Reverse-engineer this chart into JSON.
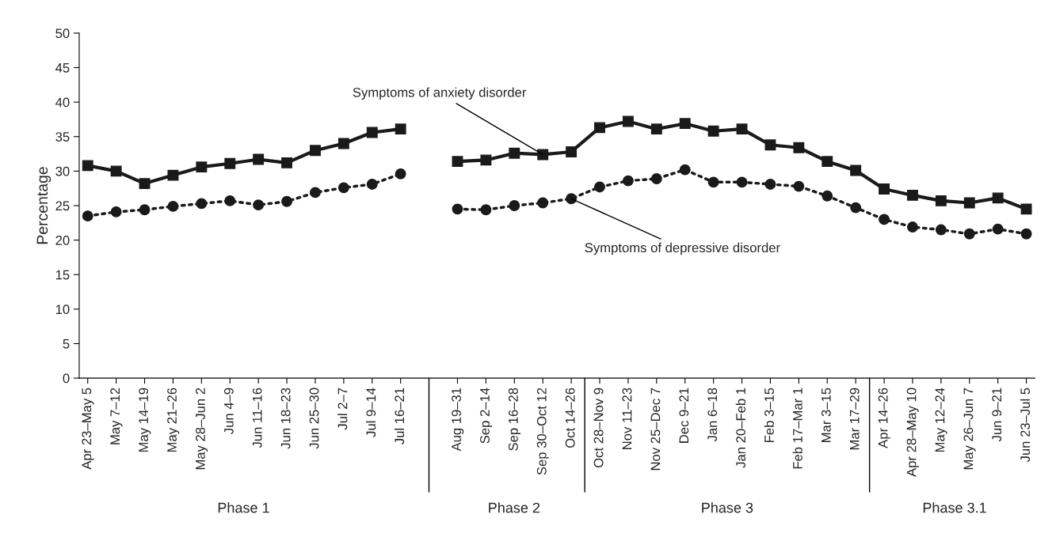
{
  "chart_data": {
    "type": "line",
    "ylabel": "Percentage",
    "categories": [
      "Apr 23–May 5",
      "May 7–12",
      "May 14–19",
      "May 21–26",
      "May 28–Jun 2",
      "Jun 4–9",
      "Jun 11–16",
      "Jun 18–23",
      "Jun 25–30",
      "Jul 2–7",
      "Jul 9–14",
      "Jul 16–21",
      null,
      "Aug 19–31",
      "Sep 2–14",
      "Sep 16–28",
      "Sep 30–Oct 12",
      "Oct 14–26",
      "Oct 28–Nov 9",
      "Nov 11–23",
      "Nov 25–Dec 7",
      "Dec 9–21",
      "Jan 6–18",
      "Jan 20–Feb 1",
      "Feb 3–15",
      "Feb 17–Mar 1",
      "Mar 3–15",
      "Mar 17–29",
      "Apr 14–26",
      "Apr 28–May 10",
      "May 12–24",
      "May 26–Jun 7",
      "Jun 9–21",
      "Jun 23–Jul 5"
    ],
    "series": [
      {
        "color": "#1a1a1a",
        "marker": "square",
        "line_style": "solid",
        "values": [
          30.8,
          30.0,
          28.2,
          29.4,
          30.6,
          31.1,
          31.7,
          31.2,
          33.0,
          34.0,
          35.6,
          36.1,
          null,
          31.4,
          31.6,
          32.6,
          32.4,
          32.8,
          36.3,
          37.2,
          36.1,
          36.9,
          35.8,
          36.1,
          33.8,
          33.4,
          31.4,
          30.1,
          27.4,
          26.5,
          25.7,
          25.4,
          26.1,
          24.5
        ]
      },
      {
        "color": "#1a1a1a",
        "marker": "circle",
        "line_style": "dotted",
        "values": [
          23.5,
          24.1,
          24.4,
          24.9,
          25.3,
          25.7,
          25.1,
          25.6,
          26.9,
          27.6,
          28.1,
          29.6,
          null,
          24.5,
          24.4,
          25.0,
          25.4,
          26.0,
          27.7,
          28.6,
          28.9,
          30.2,
          28.4,
          28.4,
          28.1,
          27.8,
          26.4,
          24.7,
          23.0,
          21.9,
          21.5,
          20.9,
          21.6,
          20.9
        ]
      }
    ],
    "annotations": [
      {
        "text": "Symptoms of anxiety disorder",
        "x": "Sep 30–Oct 12",
        "y": 32.4
      },
      {
        "text": "Symptoms of depressive disorder",
        "x": "Oct 14–26",
        "y": 26.0
      },
      "Phase 1",
      "Phase 2",
      "Phase 3",
      "Phase 3.1"
    ],
    "ylim": [
      0,
      50
    ],
    "yticks": [
      0,
      5,
      10,
      15,
      20,
      25,
      30,
      35,
      40,
      45,
      50
    ],
    "grid": false,
    "legend": false
  }
}
